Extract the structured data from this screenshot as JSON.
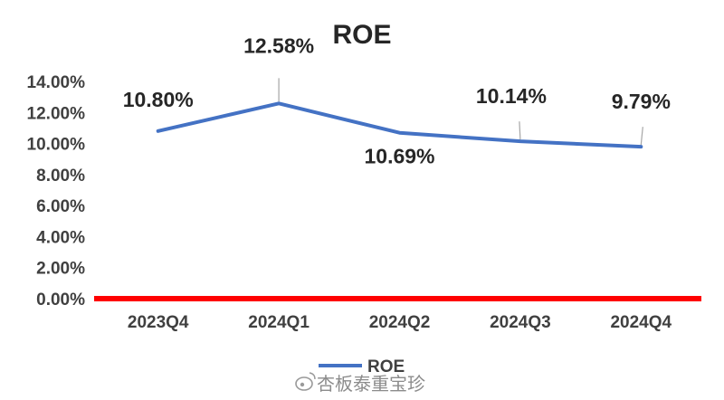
{
  "chart_data": {
    "type": "line",
    "title": "ROE",
    "categories": [
      "2023Q4",
      "2024Q1",
      "2024Q2",
      "2024Q3",
      "2024Q4"
    ],
    "series": [
      {
        "name": "ROE",
        "values": [
          10.8,
          12.58,
          10.69,
          10.14,
          9.79
        ],
        "labels": [
          "10.80%",
          "12.58%",
          "10.69%",
          "10.14%",
          "9.79%"
        ]
      }
    ],
    "ylim": [
      0,
      14
    ],
    "yticks": [
      "0.00%",
      "2.00%",
      "4.00%",
      "6.00%",
      "8.00%",
      "10.00%",
      "12.00%",
      "14.00%"
    ],
    "grid": false,
    "legend": "bottom",
    "colors": {
      "line": "#4472c4",
      "baseline": "#ff0000",
      "leader": "#a6a6a6"
    }
  },
  "watermark": {
    "text": "杏板泰重宝珍",
    "icon": "weibo-icon"
  }
}
